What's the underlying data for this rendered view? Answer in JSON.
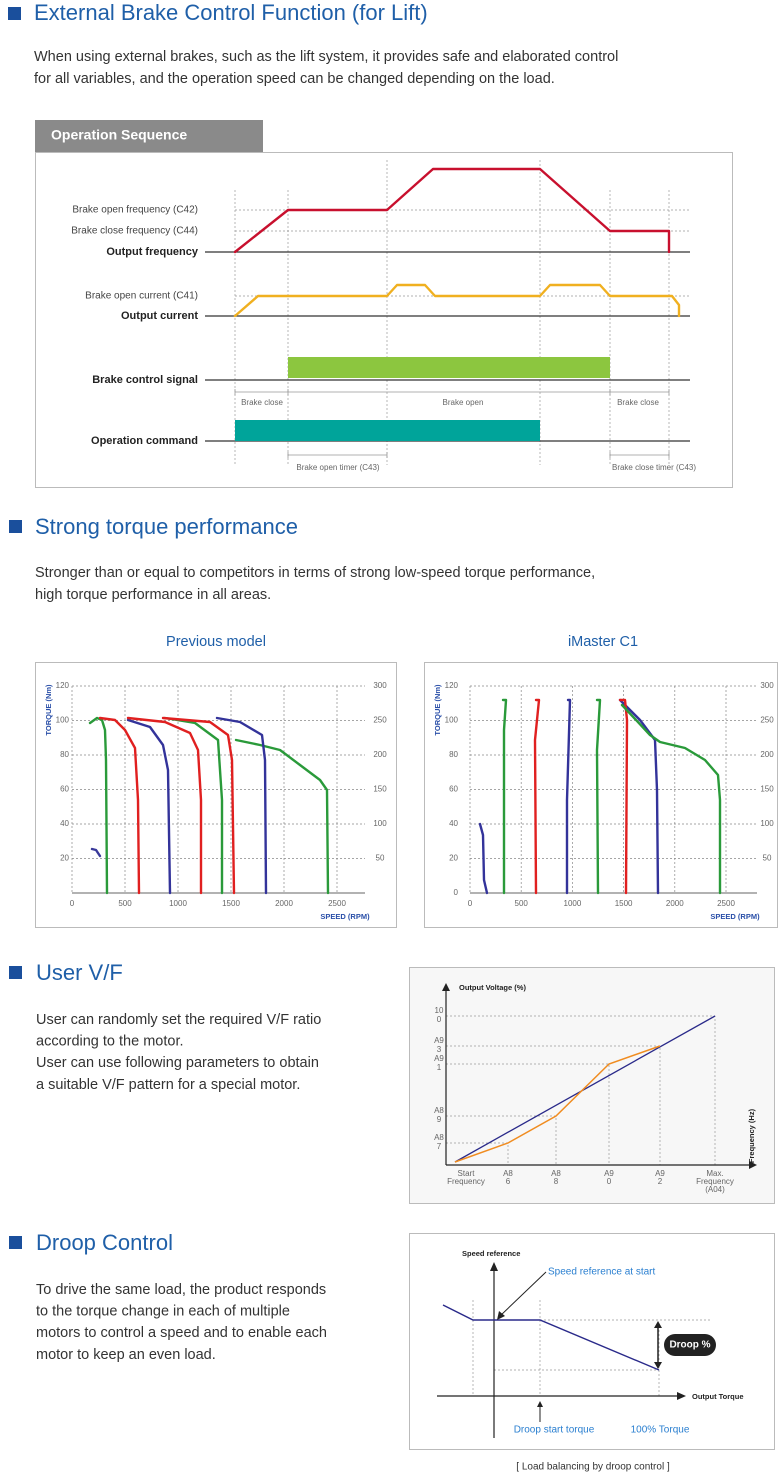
{
  "brake": {
    "title": "External Brake Control Function (for Lift)",
    "lines": [
      "When using external brakes, such as the lift system, it provides safe and elaborated control",
      "for all variables, and the operation speed can be changed depending on the load."
    ],
    "tab": "Operation Sequence",
    "signals": {
      "open_freq": "Brake open frequency (C42)",
      "close_freq": "Brake close frequency (C44)",
      "output_freq": "Output frequency",
      "open_current": "Brake open current (C41)",
      "output_current": "Output current",
      "brake_signal": "Brake control signal",
      "op_command": "Operation command"
    },
    "intervals": [
      "Brake close",
      "Brake open",
      "Brake close"
    ],
    "timers": [
      "Brake open timer (C43)",
      "Brake close timer (C43)"
    ]
  },
  "torque": {
    "title": "Strong torque performance",
    "lines": [
      "Stronger than or equal to competitors in terms of strong low-speed torque performance,",
      "high torque performance in all areas."
    ],
    "charts": [
      {
        "title": "Previous model",
        "y_label": "TORQUE (Nm)",
        "x_label": "SPEED (RPM)",
        "y_ticks": [
          120,
          100,
          80,
          60,
          40,
          20
        ],
        "y2_ticks": [
          300,
          250,
          200,
          150,
          100,
          50
        ],
        "x_ticks": [
          0,
          500,
          1000,
          1500,
          2000,
          2500
        ]
      },
      {
        "title": "iMaster C1",
        "y_label": "TORQUE (Nm)",
        "x_label": "SPEED (RPM)",
        "y_ticks": [
          120,
          100,
          80,
          60,
          40,
          20,
          0
        ],
        "y2_ticks": [
          300,
          250,
          200,
          150,
          100,
          50
        ],
        "x_ticks": [
          0,
          500,
          1000,
          1500,
          2000,
          2500
        ]
      }
    ]
  },
  "vf": {
    "title": "User V/F",
    "lines": [
      "User can randomly set the required V/F ratio",
      "according to the motor.",
      "User can use following parameters to obtain",
      "a suitable V/F pattern for a special motor."
    ],
    "y_label": "Output Voltage (%)",
    "x_label": "Frequency (Hz)",
    "y_ticks": [
      [
        "10",
        "0"
      ],
      [
        "A9",
        "3"
      ],
      [
        "A9",
        "1"
      ],
      [
        "A8",
        "9"
      ],
      [
        "A8",
        "7"
      ]
    ],
    "x_ticks": [
      [
        "Start",
        "Frequency"
      ],
      [
        "A8",
        "6"
      ],
      [
        "A8",
        "8"
      ],
      [
        "A9",
        "0"
      ],
      [
        "A9",
        "2"
      ],
      [
        "Max.",
        "Frequency",
        "(A04)"
      ]
    ]
  },
  "droop": {
    "title": "Droop Control",
    "lines": [
      "To drive the same load, the product responds",
      "to the torque change in each of multiple",
      "motors to control a speed and to enable each",
      "motor to keep an even load."
    ],
    "labels": {
      "y_axis": "Speed reference",
      "x_axis": "Output Torque",
      "start": "Speed reference at start",
      "droop": "Droop %",
      "droop_start": "Droop start torque",
      "full": "100% Torque"
    },
    "caption": "[ Load balancing by droop control ]"
  }
}
